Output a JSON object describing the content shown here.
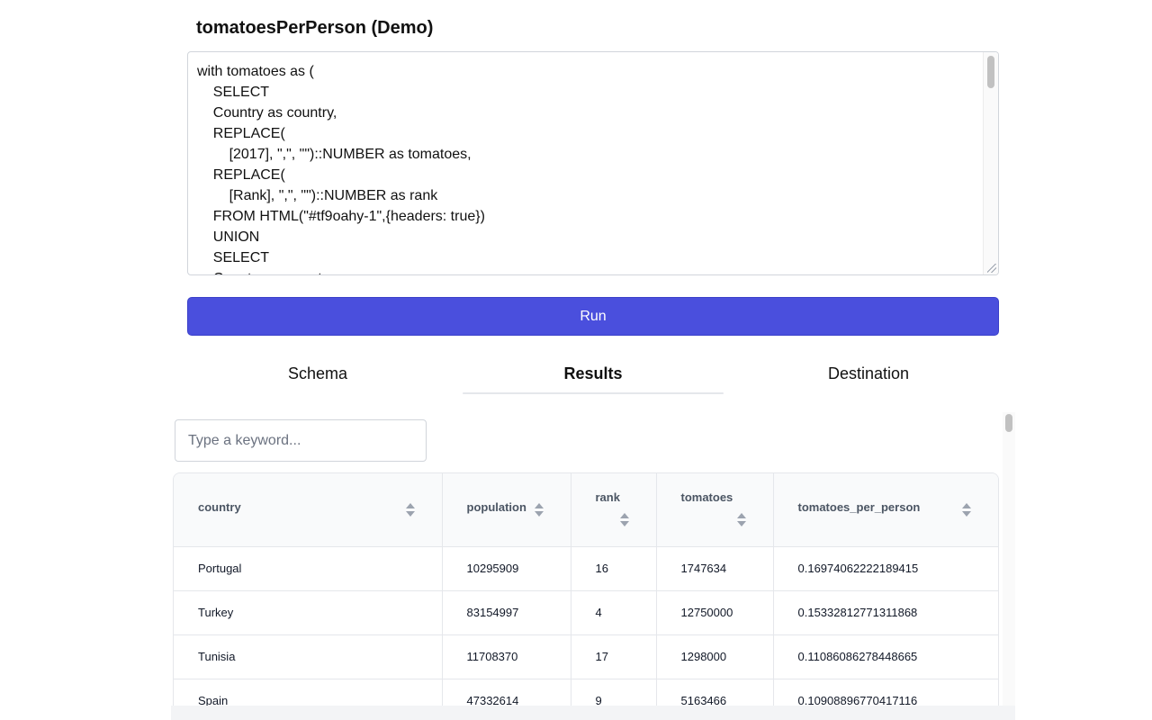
{
  "query": {
    "title": "tomatoesPerPerson (Demo)",
    "sql_lines": [
      "with tomatoes as (",
      "    SELECT",
      "    Country as country,",
      "    REPLACE(",
      "        [2017], \",\", \"\")::NUMBER as tomatoes,",
      "    REPLACE(",
      "        [Rank], \",\", \"\")::NUMBER as rank",
      "    FROM HTML(\"#tf9oahy-1\",{headers: true})",
      "    UNION",
      "    SELECT",
      "    Country as country,"
    ],
    "run_label": "Run"
  },
  "tabs": [
    {
      "label": "Schema",
      "active": false
    },
    {
      "label": "Results",
      "active": true
    },
    {
      "label": "Destination",
      "active": false
    }
  ],
  "search": {
    "placeholder": "Type a keyword...",
    "value": ""
  },
  "table": {
    "columns": [
      "country",
      "population",
      "rank",
      "tomatoes",
      "tomatoes_per_person"
    ],
    "rows": [
      [
        "Portugal",
        "10295909",
        "16",
        "1747634",
        "0.16974062222189415"
      ],
      [
        "Turkey",
        "83154997",
        "4",
        "12750000",
        "0.15332812771311868"
      ],
      [
        "Tunisia",
        "11708370",
        "17",
        "1298000",
        "0.11086086278448665"
      ],
      [
        "Spain",
        "47332614",
        "9",
        "5163466",
        "0.10908896770417116"
      ]
    ]
  },
  "icons": {
    "sort": "sort-icon",
    "resize": "resize-grip-icon"
  },
  "colors": {
    "accent": "#4a4fdd"
  }
}
